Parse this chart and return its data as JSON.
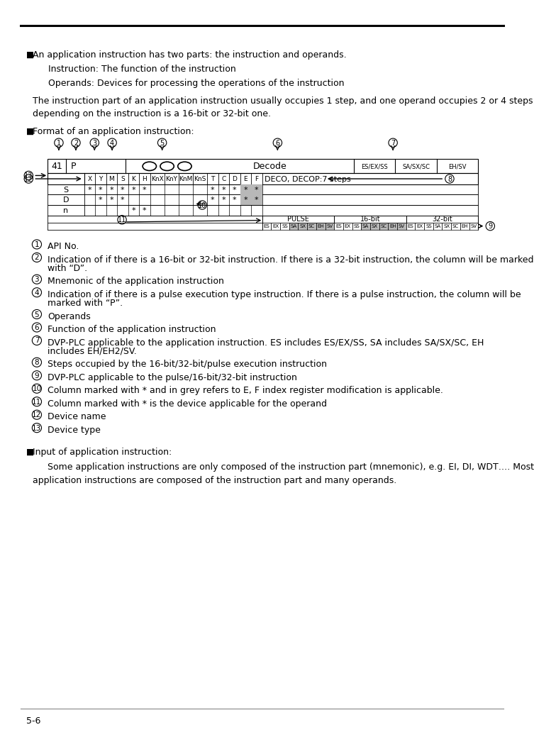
{
  "bg_color": "#ffffff",
  "bullet_char": "■",
  "section1_bullet": "An application instruction has two parts: the instruction and operands.",
  "section1_indent1": "Instruction: The function of the instruction",
  "section1_indent2": "Operands: Devices for processing the operations of the instruction",
  "section1_body1": "The instruction part of an application instruction usually occupies 1 step, and one operand occupies 2 or 4 steps",
  "section1_body2": "depending on the instruction is a 16-bit or 32-bit one.",
  "section2_bullet": "Format of an application instruction:",
  "numbered_items": [
    "API No.",
    "Indication of if there is a 16-bit or 32-bit instruction. If there is a 32-bit instruction, the column will be marked\nwith “D”.",
    "Mnemonic of the application instruction",
    "Indication of if there is a pulse execution type instruction. If there is a pulse instruction, the column will be\nmarked with “P”.",
    "Operands",
    "Function of the application instruction",
    "DVP-PLC applicable to the application instruction. ES includes ES/EX/SS, SA includes SA/SX/SC, EH\nincludes EH/EH2/SV.",
    "Steps occupied by the 16-bit/32-bit/pulse execution instruction",
    "DVP-PLC applicable to the pulse/16-bit/32-bit instruction",
    "Column marked with * and in grey refers to E, F index register modification is applicable.",
    "Column marked with * is the device applicable for the operand",
    "Device name",
    "Device type"
  ],
  "section3_bullet": "Input of application instruction:",
  "section3_body1": "Some application instructions are only composed of the instruction part (mnemonic), e.g. EI, DI, WDT…. Most",
  "section3_body2": "application instructions are composed of the instruction part and many operands.",
  "footer_text": "5-6"
}
